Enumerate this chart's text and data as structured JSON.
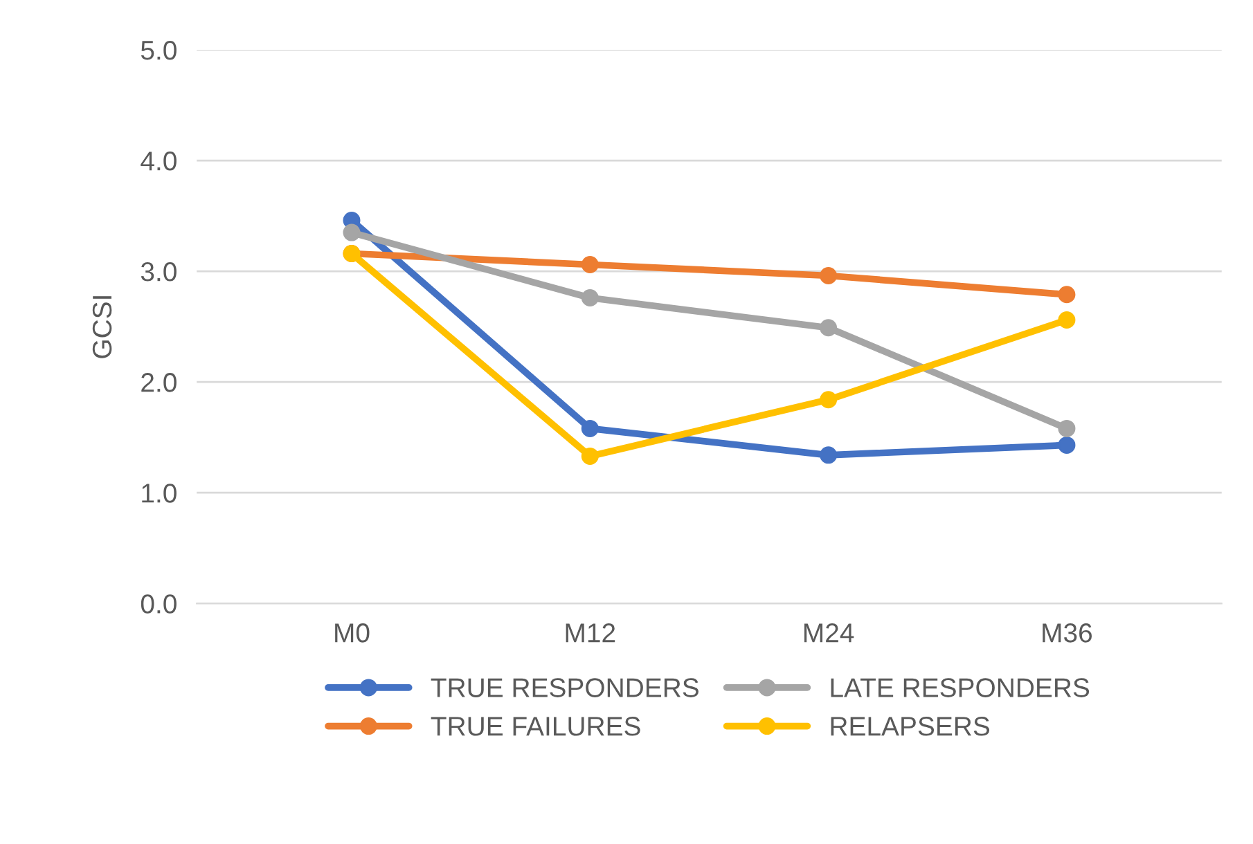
{
  "chart_data": {
    "type": "line",
    "ylabel": "GCSI",
    "categories": [
      "M0",
      "M12",
      "M24",
      "M36"
    ],
    "series": [
      {
        "name": "TRUE RESPONDERS",
        "color": "#4472c4",
        "values": [
          3.46,
          1.58,
          1.34,
          1.43
        ]
      },
      {
        "name": "TRUE FAILURES",
        "color": "#ed7d31",
        "values": [
          3.16,
          3.06,
          2.96,
          2.79
        ]
      },
      {
        "name": "LATE RESPONDERS",
        "color": "#a5a5a5",
        "values": [
          3.35,
          2.76,
          2.49,
          1.58
        ]
      },
      {
        "name": "RELAPSERS",
        "color": "#ffc000",
        "values": [
          3.16,
          1.33,
          1.84,
          2.56
        ]
      }
    ],
    "ylim": [
      0,
      5
    ],
    "yticks": [
      {
        "value": 0,
        "label": "0.0"
      },
      {
        "value": 1,
        "label": "1.0"
      },
      {
        "value": 2,
        "label": "2.0"
      },
      {
        "value": 3,
        "label": "3.0"
      },
      {
        "value": 4,
        "label": "4.0"
      },
      {
        "value": 5,
        "label": "5.0"
      }
    ],
    "grid": "y",
    "legend": "bottom",
    "marker": "circle",
    "line_style": "solid"
  }
}
